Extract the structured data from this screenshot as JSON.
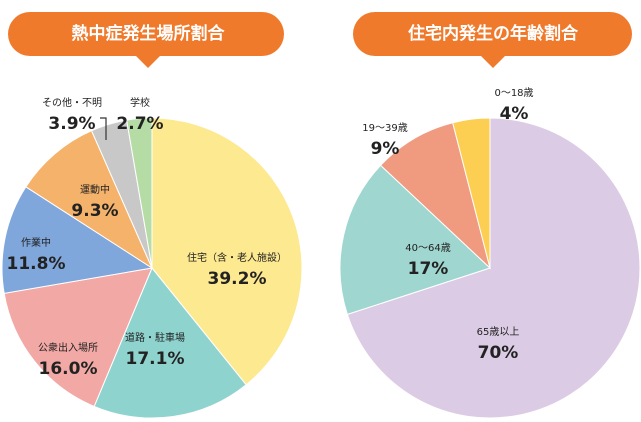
{
  "chart_data": [
    {
      "type": "pie",
      "title": "熱中症発生場所割合",
      "categories": [
        "住宅（含・老人施設）",
        "道路・駐車場",
        "公衆出入場所",
        "作業中",
        "運動中",
        "その他・不明",
        "学校"
      ],
      "values": [
        39.2,
        17.1,
        16.0,
        11.8,
        9.3,
        3.9,
        2.7
      ],
      "value_labels": [
        "39.2%",
        "17.1%",
        "16.0%",
        "11.8%",
        "9.3%",
        "3.9%",
        "2.7%"
      ],
      "colors": [
        "#fde98f",
        "#8fd3cf",
        "#f2a9a6",
        "#7fa7dc",
        "#f5b26b",
        "#c8c8c8",
        "#b6dca6"
      ]
    },
    {
      "type": "pie",
      "title": "住宅内発生の年齢割合",
      "categories": [
        "65歳以上",
        "40〜64歳",
        "19〜39歳",
        "0〜18歳"
      ],
      "values": [
        70,
        17,
        9,
        4
      ],
      "value_labels": [
        "70%",
        "17%",
        "9%",
        "4%"
      ],
      "colors": [
        "#dccbe4",
        "#9fd6cf",
        "#f09a80",
        "#fccf52"
      ]
    }
  ]
}
